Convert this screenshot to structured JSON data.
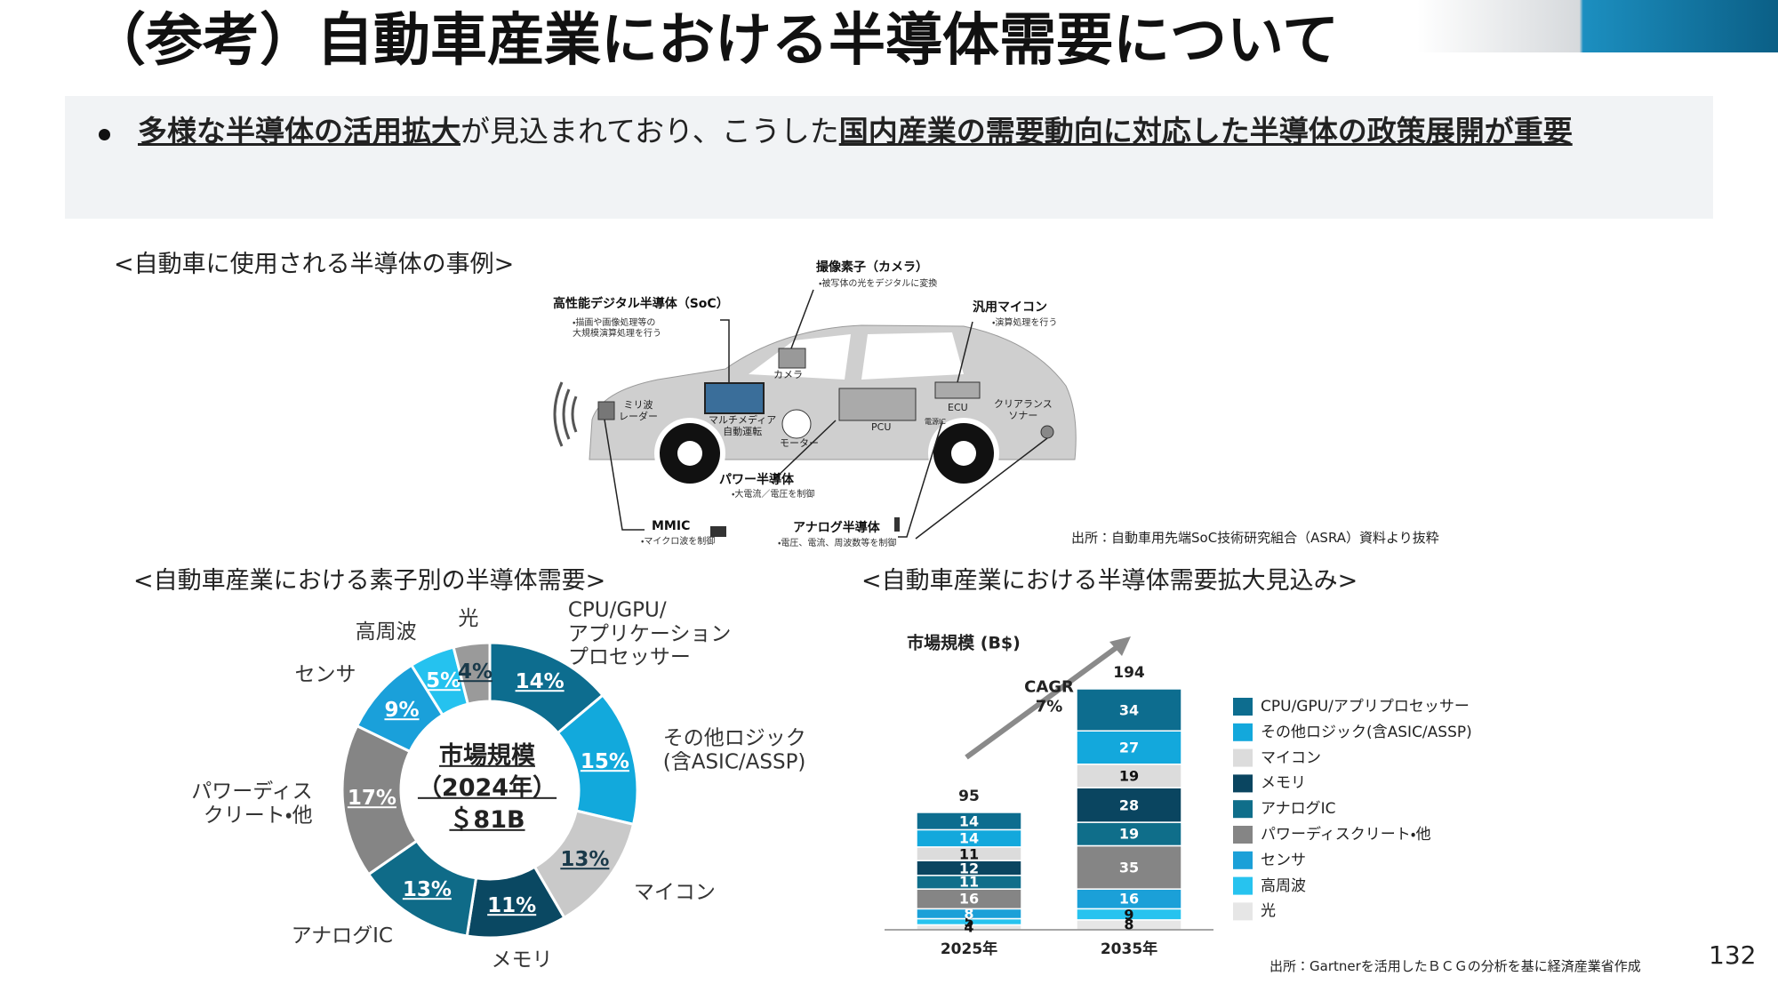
{
  "header": {
    "title": "（参考）自動車産業における半導体需要について"
  },
  "bullet": {
    "parts": [
      "多様な半導体の活用拡大",
      "が見込まれており、こうした",
      "国内産業の需要動向に対応した半導体の政策展開が重要"
    ]
  },
  "car_diagram": {
    "title": "<自動車に使用される半導体の事例>",
    "callouts": [
      {
        "label": "高性能デジタル半導体（SoC）",
        "note": "・描画や画像処理等の\n大規模演算処理を行う"
      },
      {
        "label": "撮像素子（カメラ）",
        "note": "・被写体の光をデジタルに変換"
      },
      {
        "label": "汎用マイコン",
        "note": "・演算処理を行う"
      },
      {
        "label": "パワー半導体",
        "note": "・大電流／電圧を制御"
      },
      {
        "label": "アナログ半導体",
        "note": "・電圧、電流、周波数等を制御"
      },
      {
        "label": "MMIC",
        "note": "・マイクロ波を制御"
      }
    ],
    "parts": [
      "カメラ",
      "ミリ波\nレーダー",
      "マルチメディア\n自動運転",
      "モーター",
      "PCU",
      "ECU",
      "電源IC",
      "クリアランス\nソナー"
    ],
    "source": "出所：自動車用先端SoC技術研究組合（ASRA）資料より抜粋"
  },
  "chart_data": [
    {
      "type": "donut",
      "title": "<自動車産業における素子別の半導体需要>",
      "categories": [
        "CPU/GPU/\nアプリケーション\nプロセッサー",
        "その他ロジック\n(含ASIC/ASSP)",
        "マイコン",
        "メモリ",
        "アナログIC",
        "パワーディス\nクリート・他",
        "センサ",
        "高周波",
        "光"
      ],
      "values": [
        14,
        15,
        13,
        11,
        13,
        17,
        9,
        5,
        4
      ],
      "value_labels": [
        "14%",
        "15%",
        "13%",
        "11%",
        "13%",
        "17%",
        "9%",
        "5%",
        "4%"
      ],
      "colors": [
        "#0d6d8f",
        "#12a9dc",
        "#c9c9c9",
        "#0a4862",
        "#0f6b88",
        "#858585",
        "#1aa0da",
        "#25c2ef",
        "#9a9a9a"
      ],
      "center_labels": [
        "市場規模",
        "（2024年）",
        "＄81B"
      ]
    },
    {
      "type": "stacked-bar",
      "title": "<自動車産業における半導体需要拡大見込み>",
      "y_label": "市場規模 (B$)",
      "categories": [
        "2025年",
        "2035年"
      ],
      "ylim": [
        0,
        200
      ],
      "totals": [
        95,
        194
      ],
      "annotation": "CAGR\n7%",
      "series": [
        {
          "name": "CPU/GPU/アプリプロセッサー",
          "color": "#0d6d8f",
          "values": [
            14,
            34
          ]
        },
        {
          "name": "その他ロジック(含ASIC/ASSP)",
          "color": "#13a8dc",
          "values": [
            14,
            27
          ]
        },
        {
          "name": "マイコン",
          "color": "#dcdcdc",
          "values": [
            11,
            19
          ]
        },
        {
          "name": "メモリ",
          "color": "#0a4560",
          "values": [
            12,
            28
          ]
        },
        {
          "name": "アナログIC",
          "color": "#0f6e8a",
          "values": [
            11,
            19
          ]
        },
        {
          "name": "パワーディスクリート・他",
          "color": "#858585",
          "values": [
            16,
            35
          ]
        },
        {
          "name": "センサ",
          "color": "#1ba0d8",
          "values": [
            8,
            16
          ]
        },
        {
          "name": "高周波",
          "color": "#27c3ef",
          "values": [
            5,
            9
          ]
        },
        {
          "name": "光",
          "color": "#e6e6e6",
          "values": [
            4,
            8
          ]
        }
      ],
      "source": "出所：Gartnerを活用したＢＣＧの分析を基に経済産業省作成"
    }
  ],
  "page_number": "132"
}
